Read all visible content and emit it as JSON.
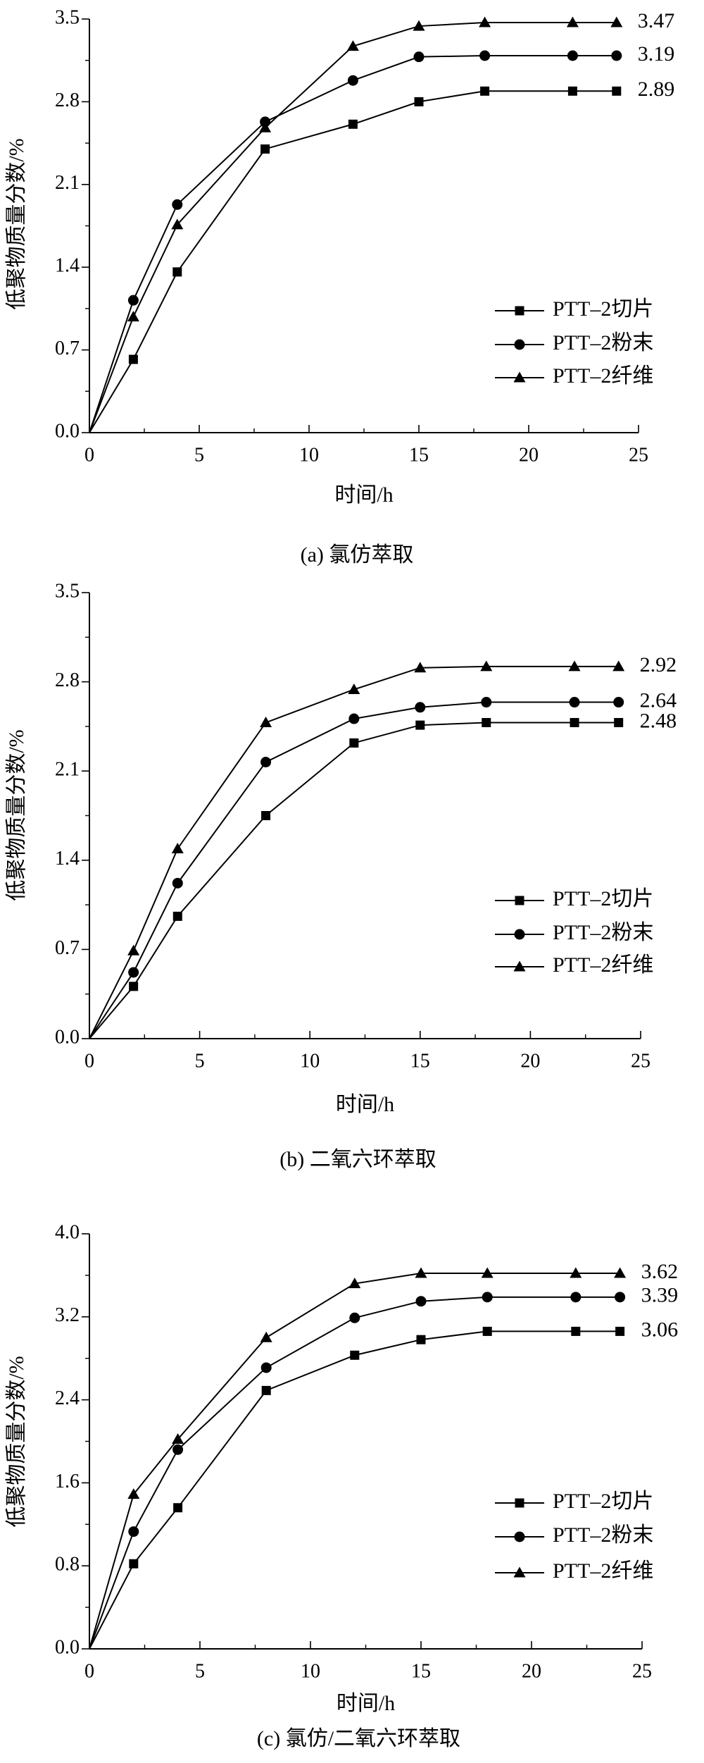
{
  "chart_data": [
    {
      "type": "line",
      "caption": "(a) 氯仿萃取",
      "xlabel": "时间/h",
      "ylabel": "低聚物质量分数/%",
      "xlim": [
        0,
        25
      ],
      "ylim": [
        0,
        3.5
      ],
      "xticks": [
        "0",
        "5",
        "10",
        "15",
        "20",
        "25"
      ],
      "yticks": [
        "0.0",
        "0.7",
        "1.4",
        "2.1",
        "2.8",
        "3.5"
      ],
      "legend_position": "center-right",
      "x": [
        0,
        2,
        4,
        8,
        12,
        15,
        18,
        22,
        24
      ],
      "series": [
        {
          "name": "PTT–2切片",
          "marker": "square",
          "values": [
            0,
            0.62,
            1.36,
            2.4,
            2.61,
            2.8,
            2.89,
            2.89,
            2.89
          ],
          "end_label": "2.89"
        },
        {
          "name": "PTT–2粉末",
          "marker": "circle",
          "values": [
            0,
            1.12,
            1.93,
            2.63,
            2.98,
            3.18,
            3.19,
            3.19,
            3.19
          ],
          "end_label": "3.19"
        },
        {
          "name": "PTT–2纤维",
          "marker": "triangle",
          "values": [
            0,
            0.98,
            1.76,
            2.58,
            3.27,
            3.44,
            3.47,
            3.47,
            3.47
          ],
          "end_label": "3.47"
        }
      ]
    },
    {
      "type": "line",
      "caption": "(b) 二氧六环萃取",
      "xlabel": "时间/h",
      "ylabel": "低聚物质量分数/%",
      "xlim": [
        0,
        25
      ],
      "ylim": [
        0,
        3.5
      ],
      "xticks": [
        "0",
        "5",
        "10",
        "15",
        "20",
        "25"
      ],
      "yticks": [
        "0.0",
        "0.7",
        "1.4",
        "2.1",
        "2.8",
        "3.5"
      ],
      "legend_position": "center-right",
      "x": [
        0,
        2,
        4,
        8,
        12,
        15,
        18,
        22,
        24
      ],
      "series": [
        {
          "name": "PTT–2切片",
          "marker": "square",
          "values": [
            0,
            0.41,
            0.96,
            1.75,
            2.32,
            2.46,
            2.48,
            2.48,
            2.48
          ],
          "end_label": "2.48"
        },
        {
          "name": "PTT–2粉末",
          "marker": "circle",
          "values": [
            0,
            0.52,
            1.22,
            2.17,
            2.51,
            2.6,
            2.64,
            2.64,
            2.64
          ],
          "end_label": "2.64"
        },
        {
          "name": "PTT–2纤维",
          "marker": "triangle",
          "values": [
            0,
            0.69,
            1.49,
            2.48,
            2.74,
            2.91,
            2.92,
            2.92,
            2.92
          ],
          "end_label": "2.92"
        }
      ]
    },
    {
      "type": "line",
      "caption": "(c) 氯仿/二氧六环萃取",
      "xlabel": "时间/h",
      "ylabel": "低聚物质量分数/%",
      "xlim": [
        0,
        25
      ],
      "ylim": [
        0,
        4.0
      ],
      "xticks": [
        "0",
        "5",
        "10",
        "15",
        "20",
        "25"
      ],
      "yticks": [
        "0.0",
        "0.8",
        "1.6",
        "2.4",
        "3.2",
        "4.0"
      ],
      "legend_position": "center-right",
      "x": [
        0,
        2,
        4,
        8,
        12,
        15,
        18,
        22,
        24
      ],
      "series": [
        {
          "name": "PTT–2切片",
          "marker": "square",
          "values": [
            0,
            0.82,
            1.36,
            2.49,
            2.83,
            2.98,
            3.06,
            3.06,
            3.06
          ],
          "end_label": "3.06"
        },
        {
          "name": "PTT–2粉末",
          "marker": "circle",
          "values": [
            0,
            1.13,
            1.92,
            2.71,
            3.19,
            3.35,
            3.39,
            3.39,
            3.39
          ],
          "end_label": "3.39"
        },
        {
          "name": "PTT–2纤维",
          "marker": "triangle",
          "values": [
            0,
            1.49,
            2.02,
            3.0,
            3.52,
            3.62,
            3.62,
            3.62,
            3.62
          ],
          "end_label": "3.62"
        }
      ]
    }
  ]
}
